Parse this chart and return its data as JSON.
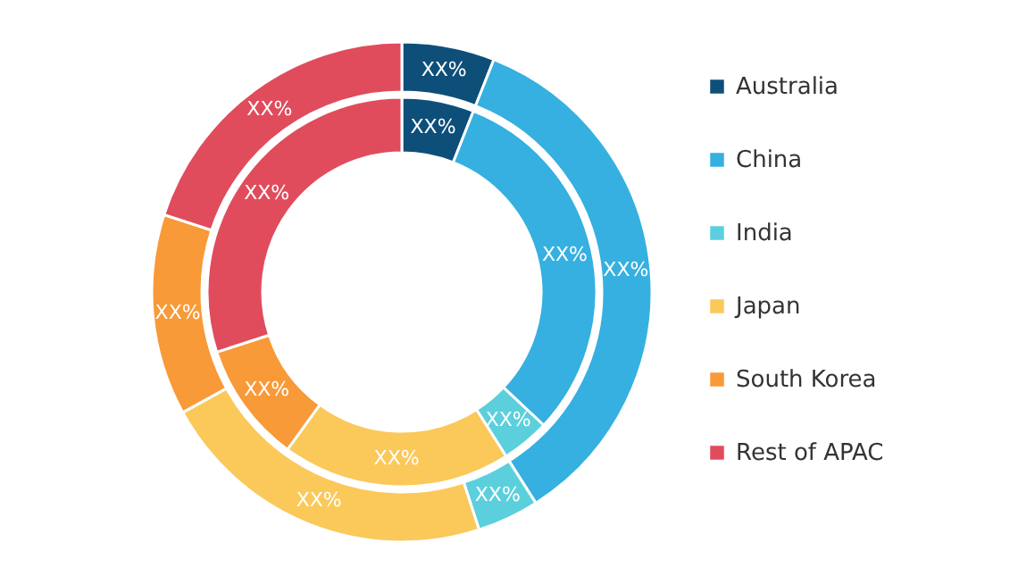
{
  "chart_data": {
    "type": "donut",
    "categories": [
      "Australia",
      "China",
      "India",
      "Japan",
      "South Korea",
      "Rest of APAC"
    ],
    "colors": [
      "#0e4f7a",
      "#35b0e0",
      "#5bd0dc",
      "#fbc85a",
      "#f89a37",
      "#e04c5c"
    ],
    "series": [
      {
        "values": [
          6,
          31,
          4,
          19,
          10,
          30
        ],
        "value_labels": [
          "XX%",
          "XX%",
          "XX%",
          "XX%",
          "XX%",
          "XX%"
        ]
      },
      {
        "values": [
          6,
          35,
          4,
          22,
          13,
          20
        ],
        "value_labels": [
          "XX%",
          "XX%",
          "XX%",
          "XX%",
          "XX%",
          "XX%"
        ]
      }
    ],
    "legend": "right"
  }
}
